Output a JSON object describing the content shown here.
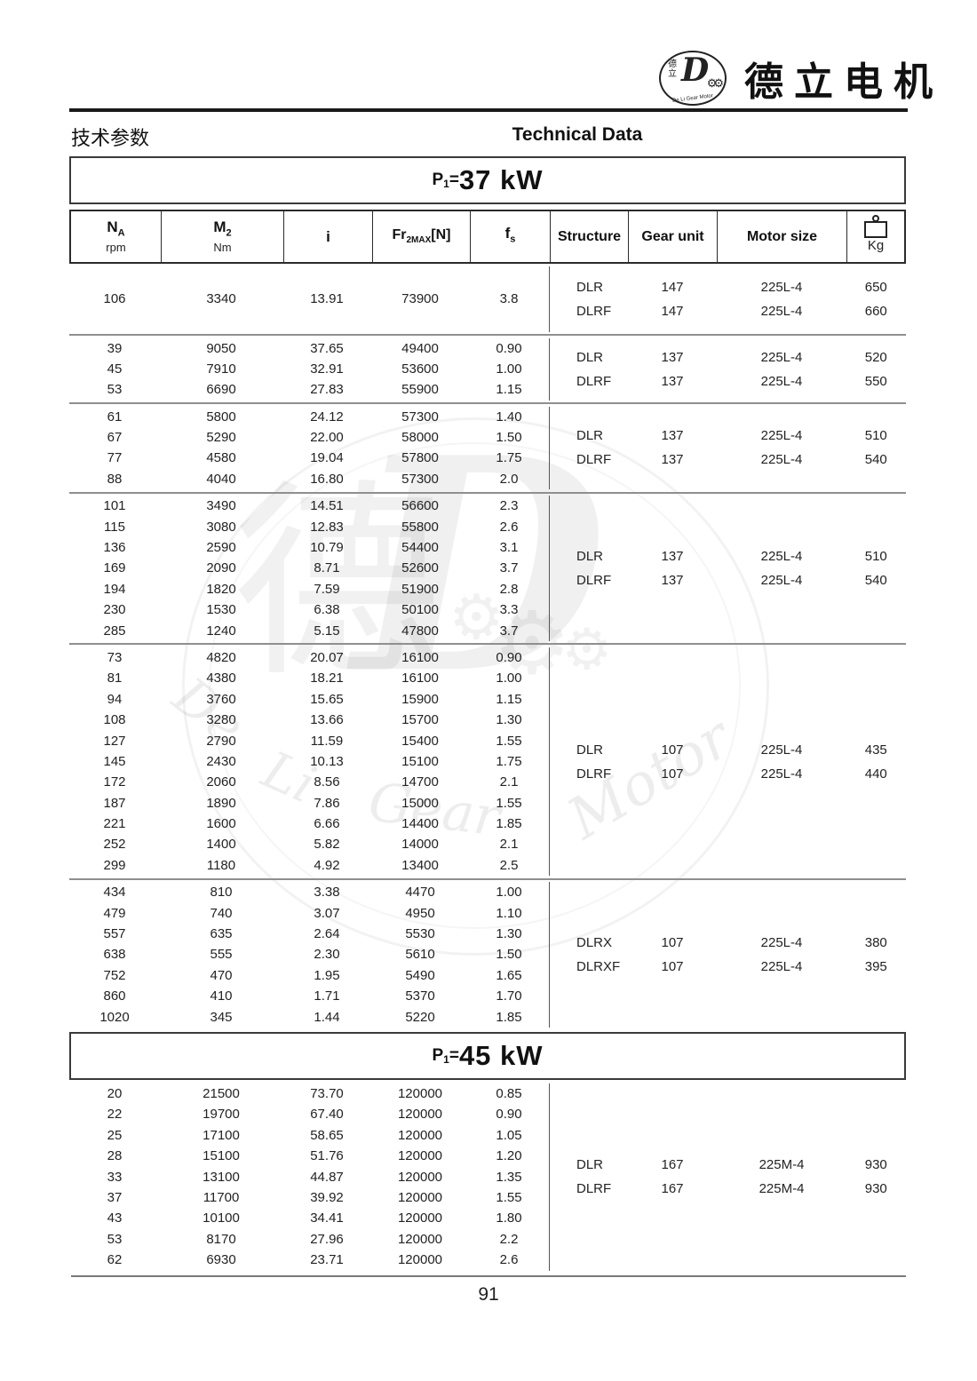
{
  "logo": {
    "brand_cn": "德立电机",
    "mark_cn": "德立",
    "mark_letter": "D",
    "arc_text": "De Li Gear Motor",
    "gears": "⚙⚙"
  },
  "header": {
    "title_cn": "技术参数",
    "title_en": "Technical Data"
  },
  "columns": [
    {
      "base": "N",
      "sub": "A",
      "unit": "rpm"
    },
    {
      "base": "M",
      "sub": "2",
      "unit": "Nm"
    },
    {
      "base": "i"
    },
    {
      "base": "Fr",
      "sub": "2MAX",
      "suffix": "[N]"
    },
    {
      "base": "f",
      "sub": "s"
    },
    {
      "base": "Structure"
    },
    {
      "base": "Gear unit"
    },
    {
      "base": "Motor size"
    },
    {
      "base": "Kg"
    }
  ],
  "sections": [
    {
      "power": {
        "base": "P",
        "sub": "1",
        "eq": "=",
        "value": "37 kW"
      },
      "groups": [
        {
          "rows": [
            [
              "106",
              "3340",
              "13.91",
              "73900",
              "3.8"
            ]
          ],
          "structure": [
            [
              "DLR",
              "147",
              "225L-4",
              "650"
            ],
            [
              "DLRF",
              "147",
              "225L-4",
              "660"
            ]
          ]
        },
        {
          "rows": [
            [
              "39",
              "9050",
              "37.65",
              "49400",
              "0.90"
            ],
            [
              "45",
              "7910",
              "32.91",
              "53600",
              "1.00"
            ],
            [
              "53",
              "6690",
              "27.83",
              "55900",
              "1.15"
            ]
          ],
          "structure": [
            [
              "DLR",
              "137",
              "225L-4",
              "520"
            ],
            [
              "DLRF",
              "137",
              "225L-4",
              "550"
            ]
          ]
        },
        {
          "rows": [
            [
              "61",
              "5800",
              "24.12",
              "57300",
              "1.40"
            ],
            [
              "67",
              "5290",
              "22.00",
              "58000",
              "1.50"
            ],
            [
              "77",
              "4580",
              "19.04",
              "57800",
              "1.75"
            ],
            [
              "88",
              "4040",
              "16.80",
              "57300",
              "2.0"
            ]
          ],
          "structure": [
            [
              "DLR",
              "137",
              "225L-4",
              "510"
            ],
            [
              "DLRF",
              "137",
              "225L-4",
              "540"
            ]
          ]
        },
        {
          "rows": [
            [
              "101",
              "3490",
              "14.51",
              "56600",
              "2.3"
            ],
            [
              "115",
              "3080",
              "12.83",
              "55800",
              "2.6"
            ],
            [
              "136",
              "2590",
              "10.79",
              "54400",
              "3.1"
            ],
            [
              "169",
              "2090",
              "8.71",
              "52600",
              "3.7"
            ],
            [
              "194",
              "1820",
              "7.59",
              "51900",
              "2.8"
            ],
            [
              "230",
              "1530",
              "6.38",
              "50100",
              "3.3"
            ],
            [
              "285",
              "1240",
              "5.15",
              "47800",
              "3.7"
            ]
          ],
          "structure": [
            [
              "DLR",
              "137",
              "225L-4",
              "510"
            ],
            [
              "DLRF",
              "137",
              "225L-4",
              "540"
            ]
          ]
        },
        {
          "rows": [
            [
              "73",
              "4820",
              "20.07",
              "16100",
              "0.90"
            ],
            [
              "81",
              "4380",
              "18.21",
              "16100",
              "1.00"
            ],
            [
              "94",
              "3760",
              "15.65",
              "15900",
              "1.15"
            ],
            [
              "108",
              "3280",
              "13.66",
              "15700",
              "1.30"
            ],
            [
              "127",
              "2790",
              "11.59",
              "15400",
              "1.55"
            ],
            [
              "145",
              "2430",
              "10.13",
              "15100",
              "1.75"
            ],
            [
              "172",
              "2060",
              "8.56",
              "14700",
              "2.1"
            ],
            [
              "187",
              "1890",
              "7.86",
              "15000",
              "1.55"
            ],
            [
              "221",
              "1600",
              "6.66",
              "14400",
              "1.85"
            ],
            [
              "252",
              "1400",
              "5.82",
              "14000",
              "2.1"
            ],
            [
              "299",
              "1180",
              "4.92",
              "13400",
              "2.5"
            ]
          ],
          "structure": [
            [
              "DLR",
              "107",
              "225L-4",
              "435"
            ],
            [
              "DLRF",
              "107",
              "225L-4",
              "440"
            ]
          ]
        },
        {
          "rows": [
            [
              "434",
              "810",
              "3.38",
              "4470",
              "1.00"
            ],
            [
              "479",
              "740",
              "3.07",
              "4950",
              "1.10"
            ],
            [
              "557",
              "635",
              "2.64",
              "5530",
              "1.30"
            ],
            [
              "638",
              "555",
              "2.30",
              "5610",
              "1.50"
            ],
            [
              "752",
              "470",
              "1.95",
              "5490",
              "1.65"
            ],
            [
              "860",
              "410",
              "1.71",
              "5370",
              "1.70"
            ],
            [
              "1020",
              "345",
              "1.44",
              "5220",
              "1.85"
            ]
          ],
          "structure": [
            [
              "DLRX",
              "107",
              "225L-4",
              "380"
            ],
            [
              "DLRXF",
              "107",
              "225L-4",
              "395"
            ]
          ]
        }
      ]
    },
    {
      "power": {
        "base": "P",
        "sub": "1",
        "eq": "=",
        "value": "45 kW"
      },
      "groups": [
        {
          "rows": [
            [
              "20",
              "21500",
              "73.70",
              "120000",
              "0.85"
            ],
            [
              "22",
              "19700",
              "67.40",
              "120000",
              "0.90"
            ],
            [
              "25",
              "17100",
              "58.65",
              "120000",
              "1.05"
            ],
            [
              "28",
              "15100",
              "51.76",
              "120000",
              "1.20"
            ],
            [
              "33",
              "13100",
              "44.87",
              "120000",
              "1.35"
            ],
            [
              "37",
              "11700",
              "39.92",
              "120000",
              "1.55"
            ],
            [
              "43",
              "10100",
              "34.41",
              "120000",
              "1.80"
            ],
            [
              "53",
              "8170",
              "27.96",
              "120000",
              "2.2"
            ],
            [
              "62",
              "6930",
              "23.71",
              "120000",
              "2.6"
            ]
          ],
          "structure": [
            [
              "DLR",
              "167",
              "225M-4",
              "930"
            ],
            [
              "DLRF",
              "167",
              "225M-4",
              "930"
            ]
          ]
        }
      ]
    }
  ],
  "watermark": {
    "char": "德",
    "letter": "D",
    "words": [
      "De",
      "Li",
      "Gear",
      "Motor"
    ],
    "gear_glyph": "⚙"
  },
  "footer": {
    "page_number": "91"
  }
}
